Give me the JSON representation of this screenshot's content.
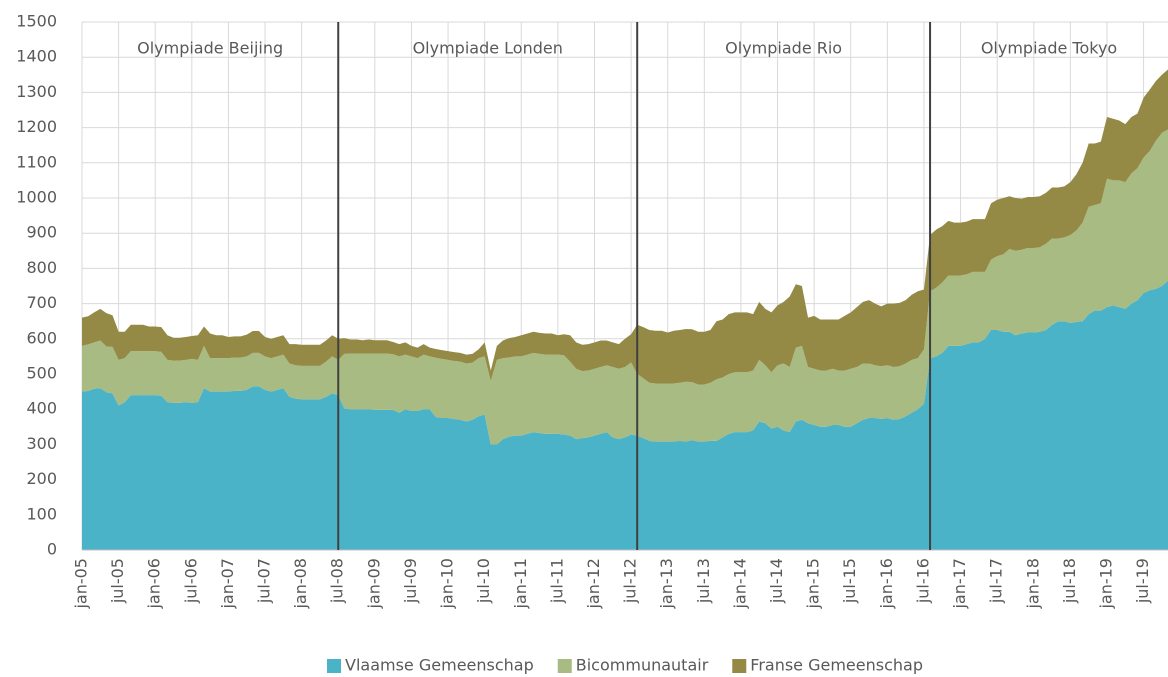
{
  "chart_data": {
    "type": "stacked_area",
    "categories": [
      "jan-05",
      null,
      null,
      null,
      null,
      null,
      "jul-05",
      null,
      null,
      null,
      null,
      null,
      "jan-06",
      null,
      null,
      null,
      null,
      null,
      "jul-06",
      null,
      null,
      null,
      null,
      null,
      "jan-07",
      null,
      null,
      null,
      null,
      null,
      "jul-07",
      null,
      null,
      null,
      null,
      null,
      "jan-08",
      null,
      null,
      null,
      null,
      null,
      "jul-08",
      null,
      null,
      null,
      null,
      null,
      "jan-09",
      null,
      null,
      null,
      null,
      null,
      "jul-09",
      null,
      null,
      null,
      null,
      null,
      "jan-10",
      null,
      null,
      null,
      null,
      null,
      "jul-10",
      null,
      null,
      null,
      null,
      null,
      "jan-11",
      null,
      null,
      null,
      null,
      null,
      "jul-11",
      null,
      null,
      null,
      null,
      null,
      "jan-12",
      null,
      null,
      null,
      null,
      null,
      "jul-12",
      null,
      null,
      null,
      null,
      null,
      "jan-13",
      null,
      null,
      null,
      null,
      null,
      "jul-13",
      null,
      null,
      null,
      null,
      null,
      "jan-14",
      null,
      null,
      null,
      null,
      null,
      "jul-14",
      null,
      null,
      null,
      null,
      null,
      "jan-15",
      null,
      null,
      null,
      null,
      null,
      "jul-15",
      null,
      null,
      null,
      null,
      null,
      "jan-16",
      null,
      null,
      null,
      null,
      null,
      "jul-16",
      null,
      null,
      null,
      null,
      null,
      "jan-17",
      null,
      null,
      null,
      null,
      null,
      "jul-17",
      null,
      null,
      null,
      null,
      null,
      "jan-18",
      null,
      null,
      null,
      null,
      null,
      "jul-18",
      null,
      null,
      null,
      null,
      null,
      "jan-19",
      null,
      null,
      null,
      null,
      null,
      "jul-19",
      null,
      null,
      null,
      null
    ],
    "series": [
      {
        "name": "Vlaamse Gemeenschap",
        "color": "#4bb3c8",
        "values": [
          450,
          452,
          458,
          460,
          448,
          445,
          410,
          420,
          440,
          440,
          440,
          440,
          440,
          438,
          420,
          418,
          418,
          420,
          418,
          420,
          460,
          450,
          450,
          450,
          450,
          452,
          452,
          455,
          465,
          465,
          455,
          450,
          455,
          460,
          435,
          430,
          428,
          428,
          428,
          428,
          435,
          445,
          440,
          402,
          400,
          400,
          400,
          400,
          398,
          398,
          398,
          398,
          390,
          400,
          395,
          395,
          400,
          400,
          378,
          375,
          375,
          372,
          370,
          365,
          370,
          380,
          385,
          300,
          300,
          315,
          322,
          325,
          325,
          330,
          335,
          332,
          330,
          330,
          330,
          328,
          325,
          315,
          318,
          320,
          325,
          330,
          335,
          320,
          315,
          320,
          328,
          325,
          318,
          310,
          308,
          308,
          308,
          308,
          310,
          308,
          312,
          308,
          308,
          310,
          310,
          320,
          330,
          335,
          335,
          335,
          340,
          365,
          360,
          345,
          350,
          340,
          335,
          365,
          370,
          360,
          355,
          350,
          350,
          355,
          355,
          350,
          350,
          360,
          370,
          375,
          375,
          372,
          375,
          370,
          372,
          380,
          390,
          400,
          415,
          545,
          550,
          560,
          580,
          580,
          580,
          585,
          590,
          590,
          600,
          625,
          625,
          620,
          620,
          610,
          615,
          618,
          618,
          620,
          625,
          640,
          650,
          650,
          645,
          648,
          650,
          670,
          680,
          680,
          690,
          695,
          690,
          685,
          700,
          710,
          730,
          738,
          742,
          750,
          765
        ]
      },
      {
        "name": "Bicommunautair",
        "color": "#a8bb82",
        "values": [
          130,
          132,
          132,
          135,
          130,
          132,
          130,
          125,
          125,
          125,
          125,
          125,
          125,
          125,
          120,
          120,
          120,
          120,
          125,
          120,
          120,
          95,
          95,
          95,
          95,
          95,
          95,
          95,
          95,
          95,
          95,
          95,
          95,
          95,
          95,
          95,
          95,
          95,
          95,
          95,
          100,
          105,
          100,
          155,
          158,
          158,
          158,
          158,
          160,
          160,
          160,
          158,
          160,
          155,
          155,
          150,
          155,
          150,
          168,
          168,
          165,
          165,
          165,
          165,
          162,
          165,
          165,
          180,
          240,
          230,
          225,
          225,
          225,
          225,
          225,
          225,
          225,
          225,
          225,
          225,
          210,
          200,
          190,
          190,
          190,
          190,
          190,
          200,
          200,
          200,
          205,
          175,
          170,
          165,
          165,
          165,
          165,
          165,
          165,
          170,
          165,
          162,
          162,
          165,
          175,
          170,
          170,
          170,
          170,
          170,
          170,
          175,
          165,
          160,
          175,
          190,
          185,
          210,
          210,
          160,
          160,
          160,
          160,
          160,
          155,
          160,
          165,
          160,
          160,
          155,
          150,
          150,
          150,
          150,
          150,
          150,
          150,
          145,
          155,
          190,
          195,
          200,
          200,
          200,
          200,
          198,
          200,
          200,
          190,
          200,
          210,
          220,
          235,
          240,
          238,
          240,
          240,
          240,
          245,
          245,
          235,
          238,
          250,
          260,
          280,
          305,
          300,
          305,
          365,
          355,
          360,
          360,
          370,
          375,
          385,
          395,
          420,
          435,
          430
        ]
      },
      {
        "name": "Franse Gemeenschap",
        "color": "#948a45",
        "values": [
          80,
          80,
          85,
          90,
          95,
          90,
          80,
          75,
          75,
          75,
          75,
          70,
          70,
          70,
          70,
          65,
          65,
          65,
          65,
          70,
          55,
          70,
          65,
          65,
          60,
          60,
          60,
          62,
          62,
          62,
          55,
          55,
          55,
          55,
          55,
          60,
          60,
          60,
          60,
          60,
          60,
          60,
          60,
          45,
          40,
          40,
          38,
          40,
          38,
          38,
          38,
          35,
          35,
          35,
          30,
          30,
          30,
          25,
          25,
          25,
          25,
          25,
          25,
          25,
          25,
          25,
          40,
          30,
          40,
          50,
          55,
          55,
          60,
          60,
          60,
          60,
          60,
          60,
          55,
          60,
          75,
          75,
          75,
          75,
          75,
          75,
          70,
          70,
          70,
          80,
          80,
          140,
          145,
          150,
          150,
          150,
          145,
          150,
          150,
          150,
          150,
          150,
          150,
          150,
          165,
          165,
          170,
          170,
          170,
          170,
          160,
          165,
          160,
          170,
          170,
          175,
          200,
          180,
          170,
          140,
          150,
          145,
          145,
          140,
          145,
          155,
          160,
          170,
          175,
          180,
          175,
          170,
          175,
          180,
          180,
          180,
          185,
          190,
          170,
          160,
          165,
          160,
          155,
          150,
          150,
          150,
          150,
          150,
          150,
          160,
          160,
          160,
          150,
          150,
          145,
          145,
          145,
          145,
          145,
          145,
          145,
          145,
          150,
          160,
          170,
          180,
          175,
          175,
          175,
          175,
          170,
          165,
          160,
          155,
          170,
          175,
          170,
          165,
          170
        ]
      }
    ],
    "ylim": [
      0,
      1500
    ],
    "yticks": [
      0,
      100,
      200,
      300,
      400,
      500,
      600,
      700,
      800,
      900,
      1000,
      1100,
      1200,
      1300,
      1400,
      1500
    ],
    "grid": true,
    "legend": "bottom",
    "periods": [
      "Olympiade Beijing",
      "Olympiade Londen",
      "Olympiade Rio",
      "Olympiade Tokyo"
    ],
    "dividers": [
      42,
      91,
      139
    ]
  }
}
